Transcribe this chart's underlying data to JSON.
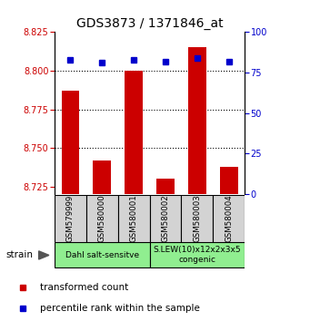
{
  "title": "GDS3873 / 1371846_at",
  "samples": [
    "GSM579999",
    "GSM580000",
    "GSM580001",
    "GSM580002",
    "GSM580003",
    "GSM580004"
  ],
  "red_values": [
    8.787,
    8.742,
    8.8,
    8.73,
    8.815,
    8.738
  ],
  "blue_values": [
    83,
    81,
    83,
    82,
    84,
    82
  ],
  "ymin": 8.72,
  "ymax": 8.825,
  "y2min": 0,
  "y2max": 100,
  "yticks": [
    8.725,
    8.75,
    8.775,
    8.8,
    8.825
  ],
  "y2ticks": [
    0,
    25,
    50,
    75,
    100
  ],
  "gridlines": [
    8.8,
    8.775,
    8.75
  ],
  "bar_color": "#cc0000",
  "dot_color": "#0000cc",
  "bar_bottom": 8.72,
  "group1_label": "Dahl salt-sensitve",
  "group2_label": "S.LEW(10)x12x2x3x5\ncongenic",
  "group_color": "#90ee90",
  "sample_box_color": "#d3d3d3",
  "strain_label": "strain",
  "legend_red": "transformed count",
  "legend_blue": "percentile rank within the sample",
  "title_fontsize": 10,
  "tick_fontsize": 7,
  "legend_fontsize": 7.5
}
